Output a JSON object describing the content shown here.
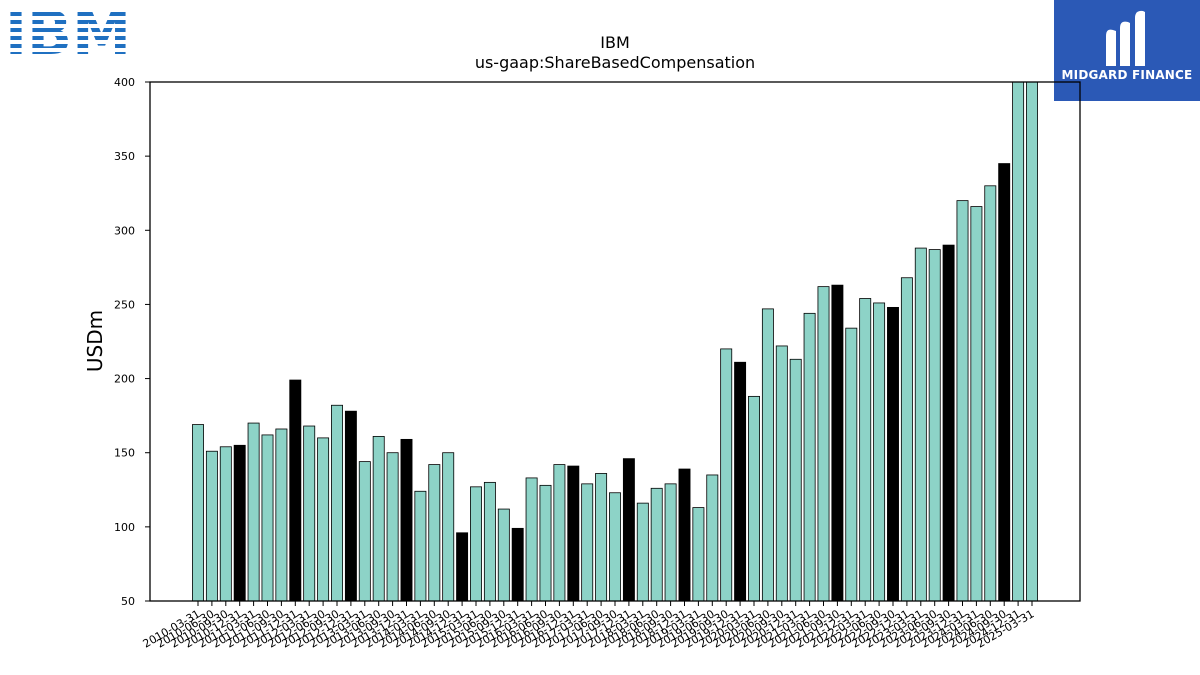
{
  "logos": {
    "left_brand": "IBM",
    "right_brand": "MIDGARD FINANCE"
  },
  "colors": {
    "bar_default": "#8dd3c7",
    "bar_highlight": "#000000",
    "bar_edge": "#000000",
    "ibm_blue": "#1f70c1",
    "midgard_bg": "#2b59b6"
  },
  "chart_data": {
    "type": "bar",
    "title": "IBM",
    "subtitle": "us-gaap:ShareBasedCompensation",
    "ylabel": "USDm",
    "xlabel": "",
    "ylim": [
      50,
      400
    ],
    "yticks": [
      50,
      100,
      150,
      200,
      250,
      300,
      350,
      400
    ],
    "grid": false,
    "categories": [
      "2010-03-31",
      "2010-06-30",
      "2010-09-30",
      "2010-12-31",
      "2011-03-31",
      "2011-06-30",
      "2011-09-30",
      "2011-12-31",
      "2012-03-31",
      "2012-06-30",
      "2012-09-30",
      "2012-12-31",
      "2013-03-31",
      "2013-06-30",
      "2013-09-30",
      "2013-12-31",
      "2014-03-31",
      "2014-06-30",
      "2014-09-30",
      "2014-12-31",
      "2015-03-31",
      "2015-06-30",
      "2015-09-30",
      "2015-12-31",
      "2016-03-31",
      "2016-06-30",
      "2016-09-30",
      "2016-12-31",
      "2017-03-31",
      "2017-06-30",
      "2017-09-30",
      "2017-12-31",
      "2018-03-31",
      "2018-06-30",
      "2018-09-30",
      "2018-12-31",
      "2019-03-31",
      "2019-06-30",
      "2019-09-30",
      "2019-12-31",
      "2020-03-31",
      "2020-06-30",
      "2020-09-30",
      "2020-12-31",
      "2021-03-31",
      "2021-06-30",
      "2021-09-30",
      "2021-12-31",
      "2022-03-31",
      "2022-06-30",
      "2022-09-30",
      "2022-12-31",
      "2023-03-31",
      "2023-06-30",
      "2023-09-30",
      "2023-12-31",
      "2024-03-31",
      "2024-06-30",
      "2024-09-30",
      "2024-12-31",
      "2025-03-31"
    ],
    "values": [
      169,
      151,
      154,
      155,
      170,
      162,
      166,
      199,
      168,
      160,
      182,
      178,
      144,
      161,
      150,
      159,
      124,
      142,
      150,
      96,
      127,
      130,
      112,
      99,
      133,
      128,
      142,
      141,
      129,
      136,
      123,
      146,
      116,
      126,
      129,
      139,
      113,
      135,
      220,
      211,
      188,
      247,
      222,
      213,
      244,
      262,
      263,
      234,
      254,
      251,
      248,
      268,
      288,
      287,
      290,
      320,
      316,
      330,
      345,
      401,
      402
    ],
    "highlight": [
      false,
      false,
      false,
      true,
      false,
      false,
      false,
      true,
      false,
      false,
      false,
      true,
      false,
      false,
      false,
      true,
      false,
      false,
      false,
      true,
      false,
      false,
      false,
      true,
      false,
      false,
      false,
      true,
      false,
      false,
      false,
      true,
      false,
      false,
      false,
      true,
      false,
      false,
      false,
      true,
      false,
      false,
      false,
      false,
      false,
      false,
      true,
      false,
      false,
      false,
      true,
      false,
      false,
      false,
      true,
      false,
      false,
      false,
      true,
      false,
      false
    ]
  }
}
